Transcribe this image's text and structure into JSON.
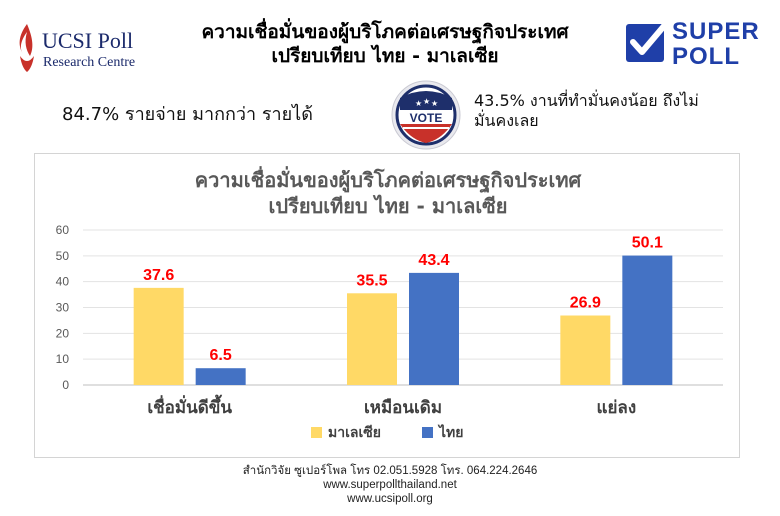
{
  "header": {
    "title_line1": "ความเชื่อมั่นของผู้บริโภคต่อเศรษฐกิจประเทศ",
    "title_line2": "เปรียบเทียบ ไทย - มาเลเซีย"
  },
  "logos": {
    "left": {
      "name": "UCSI Poll",
      "sub": "Research Centre",
      "color": "#1b2a6b",
      "accent": "#c8312a"
    },
    "right": {
      "word1": "SUPER",
      "word2": "POLL",
      "color": "#1f3fa8"
    }
  },
  "stats": {
    "left_text": "84.7%  รายจ่าย มากกว่า รายได้",
    "badge_text": "VOTE",
    "right_text": "43.5% งานที่ทำมั่นคงน้อย ถึงไม่มั่นคงเลย"
  },
  "chart_data": {
    "type": "bar",
    "title": "ความเชื่อมั่นของผู้บริโภคต่อเศรษฐกิจประเทศ เปรียบเทียบ ไทย - มาเลเซีย",
    "title_line1": "ความเชื่อมั่นของผู้บริโภคต่อเศรษฐกิจประเทศ",
    "title_line2": "เปรียบเทียบ ไทย - มาเลเซีย",
    "categories": [
      "เชื่อมั่นดีขึ้น",
      "เหมือนเดิม",
      "แย่ลง"
    ],
    "series": [
      {
        "name": "มาเลเซีย",
        "values": [
          37.6,
          35.5,
          26.9
        ],
        "color": "#ffd966"
      },
      {
        "name": "ไทย",
        "values": [
          6.5,
          43.4,
          50.1
        ],
        "color": "#4472c4"
      }
    ],
    "ylim": [
      0,
      60
    ],
    "yticks": [
      0,
      10,
      20,
      30,
      40,
      50,
      60
    ],
    "grid": true,
    "legend": "bottom",
    "label_color": "#ff0000"
  },
  "footer": {
    "line1": "สำนักวิจัย ซูเปอร์โพล โทร 02.051.5928  โทร. 064.224.2646",
    "line2": "www.superpollthailand.net",
    "line3": "www.ucsipoll.org"
  }
}
